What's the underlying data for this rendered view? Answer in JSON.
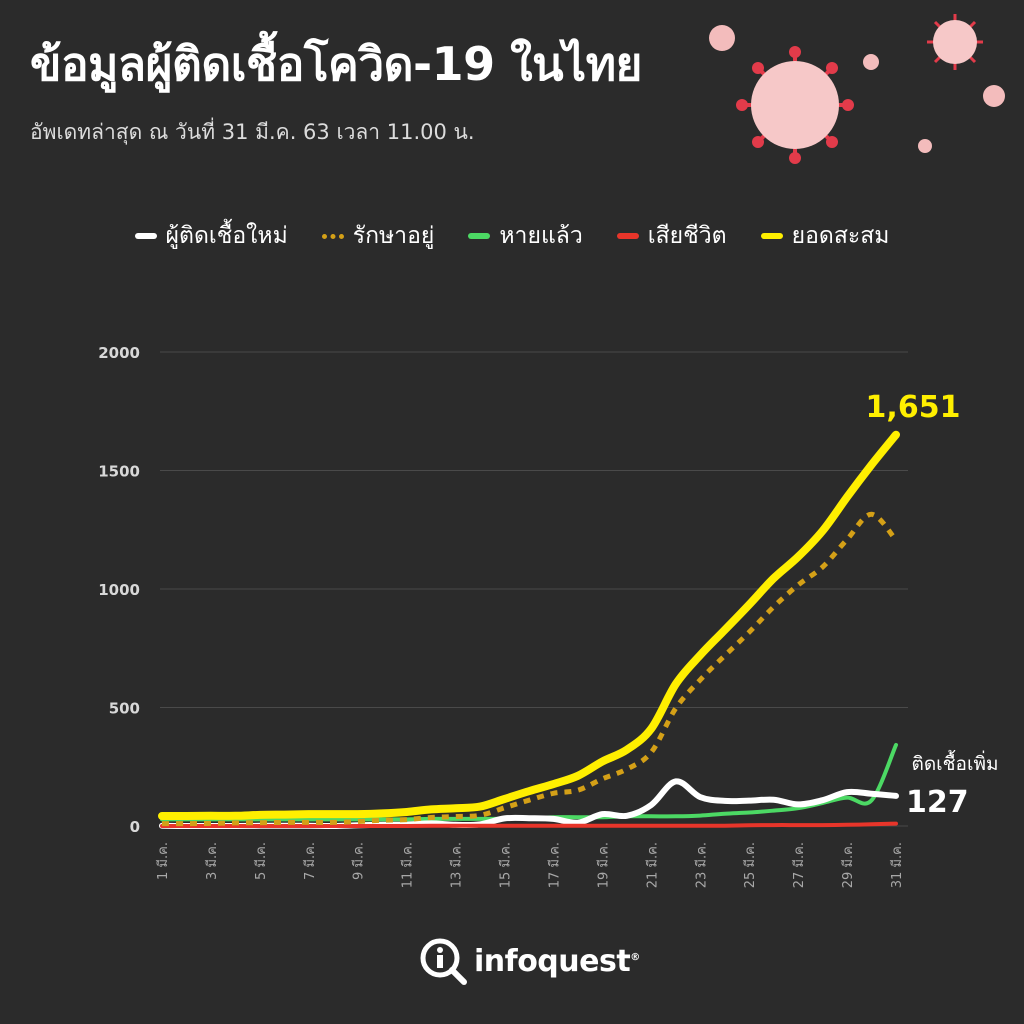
{
  "header": {
    "title": "ข้อมูลผู้ติดเชื้อโควิด-19 ในไทย",
    "subtitle": "อัพเดทล่าสุด ณ วันที่ 31 มี.ค. 63 เวลา 11.00 น."
  },
  "brand": {
    "name": "infoquest",
    "reg": "®"
  },
  "chart_data": {
    "type": "line",
    "legend_position": "top",
    "grid": true,
    "ylim": [
      0,
      2000
    ],
    "yticks": [
      0,
      500,
      1000,
      1500,
      2000
    ],
    "x_tick_labels": [
      "1 มี.ค.",
      "3 มี.ค.",
      "5 มี.ค.",
      "7 มี.ค.",
      "9 มี.ค.",
      "11 มี.ค.",
      "13 มี.ค.",
      "15 มี.ค.",
      "17 มี.ค.",
      "19 มี.ค.",
      "21 มี.ค.",
      "23 มี.ค.",
      "25 มี.ค.",
      "27 มี.ค.",
      "29 มี.ค.",
      "31 มี.ค."
    ],
    "x_days": [
      1,
      2,
      3,
      4,
      5,
      6,
      7,
      8,
      9,
      10,
      11,
      12,
      13,
      14,
      15,
      16,
      17,
      18,
      19,
      20,
      21,
      22,
      23,
      24,
      25,
      26,
      27,
      28,
      29,
      30,
      31
    ],
    "series": [
      {
        "name": "ผู้ติดเชื้อใหม่",
        "color": "#ffffff",
        "style": "solid",
        "values": [
          1,
          0,
          0,
          0,
          1,
          1,
          1,
          0,
          3,
          5,
          6,
          11,
          5,
          7,
          32,
          33,
          30,
          14,
          50,
          43,
          89,
          188,
          122,
          106,
          107,
          111,
          91,
          109,
          143,
          136,
          127
        ]
      },
      {
        "name": "รักษาอยู่",
        "color": "#d4a017",
        "style": "dotted",
        "values": [
          10,
          10,
          11,
          13,
          14,
          15,
          15,
          15,
          19,
          24,
          27,
          36,
          40,
          45,
          77,
          109,
          138,
          151,
          199,
          240,
          311,
          497,
          617,
          719,
          818,
          925,
          1017,
          1093,
          1209,
          1315,
          1206
        ]
      },
      {
        "name": "หายแล้ว",
        "color": "#4cd964",
        "style": "solid",
        "values": [
          28,
          28,
          28,
          28,
          28,
          28,
          28,
          28,
          28,
          28,
          28,
          30,
          30,
          30,
          31,
          33,
          37,
          37,
          37,
          41,
          41,
          41,
          44,
          52,
          57,
          65,
          75,
          97,
          120,
          108,
          342
        ]
      },
      {
        "name": "เสียชีวิต",
        "color": "#e8352a",
        "style": "solid",
        "values": [
          0,
          0,
          0,
          0,
          0,
          0,
          0,
          0,
          0,
          0,
          0,
          1,
          1,
          1,
          1,
          1,
          1,
          1,
          1,
          1,
          1,
          1,
          1,
          1,
          3,
          4,
          4,
          4,
          5,
          7,
          10
        ]
      },
      {
        "name": "ยอดสะสม",
        "color": "#ffef00",
        "style": "solid",
        "values": [
          42,
          42,
          43,
          43,
          47,
          48,
          50,
          50,
          50,
          53,
          59,
          70,
          75,
          82,
          114,
          147,
          177,
          212,
          272,
          322,
          411,
          599,
          721,
          827,
          934,
          1045,
          1136,
          1245,
          1388,
          1524,
          1651
        ]
      }
    ],
    "annotations": {
      "total_label": "1,651",
      "new_caption": "ติดเชื้อเพิ่ม",
      "new_value": "127"
    }
  }
}
